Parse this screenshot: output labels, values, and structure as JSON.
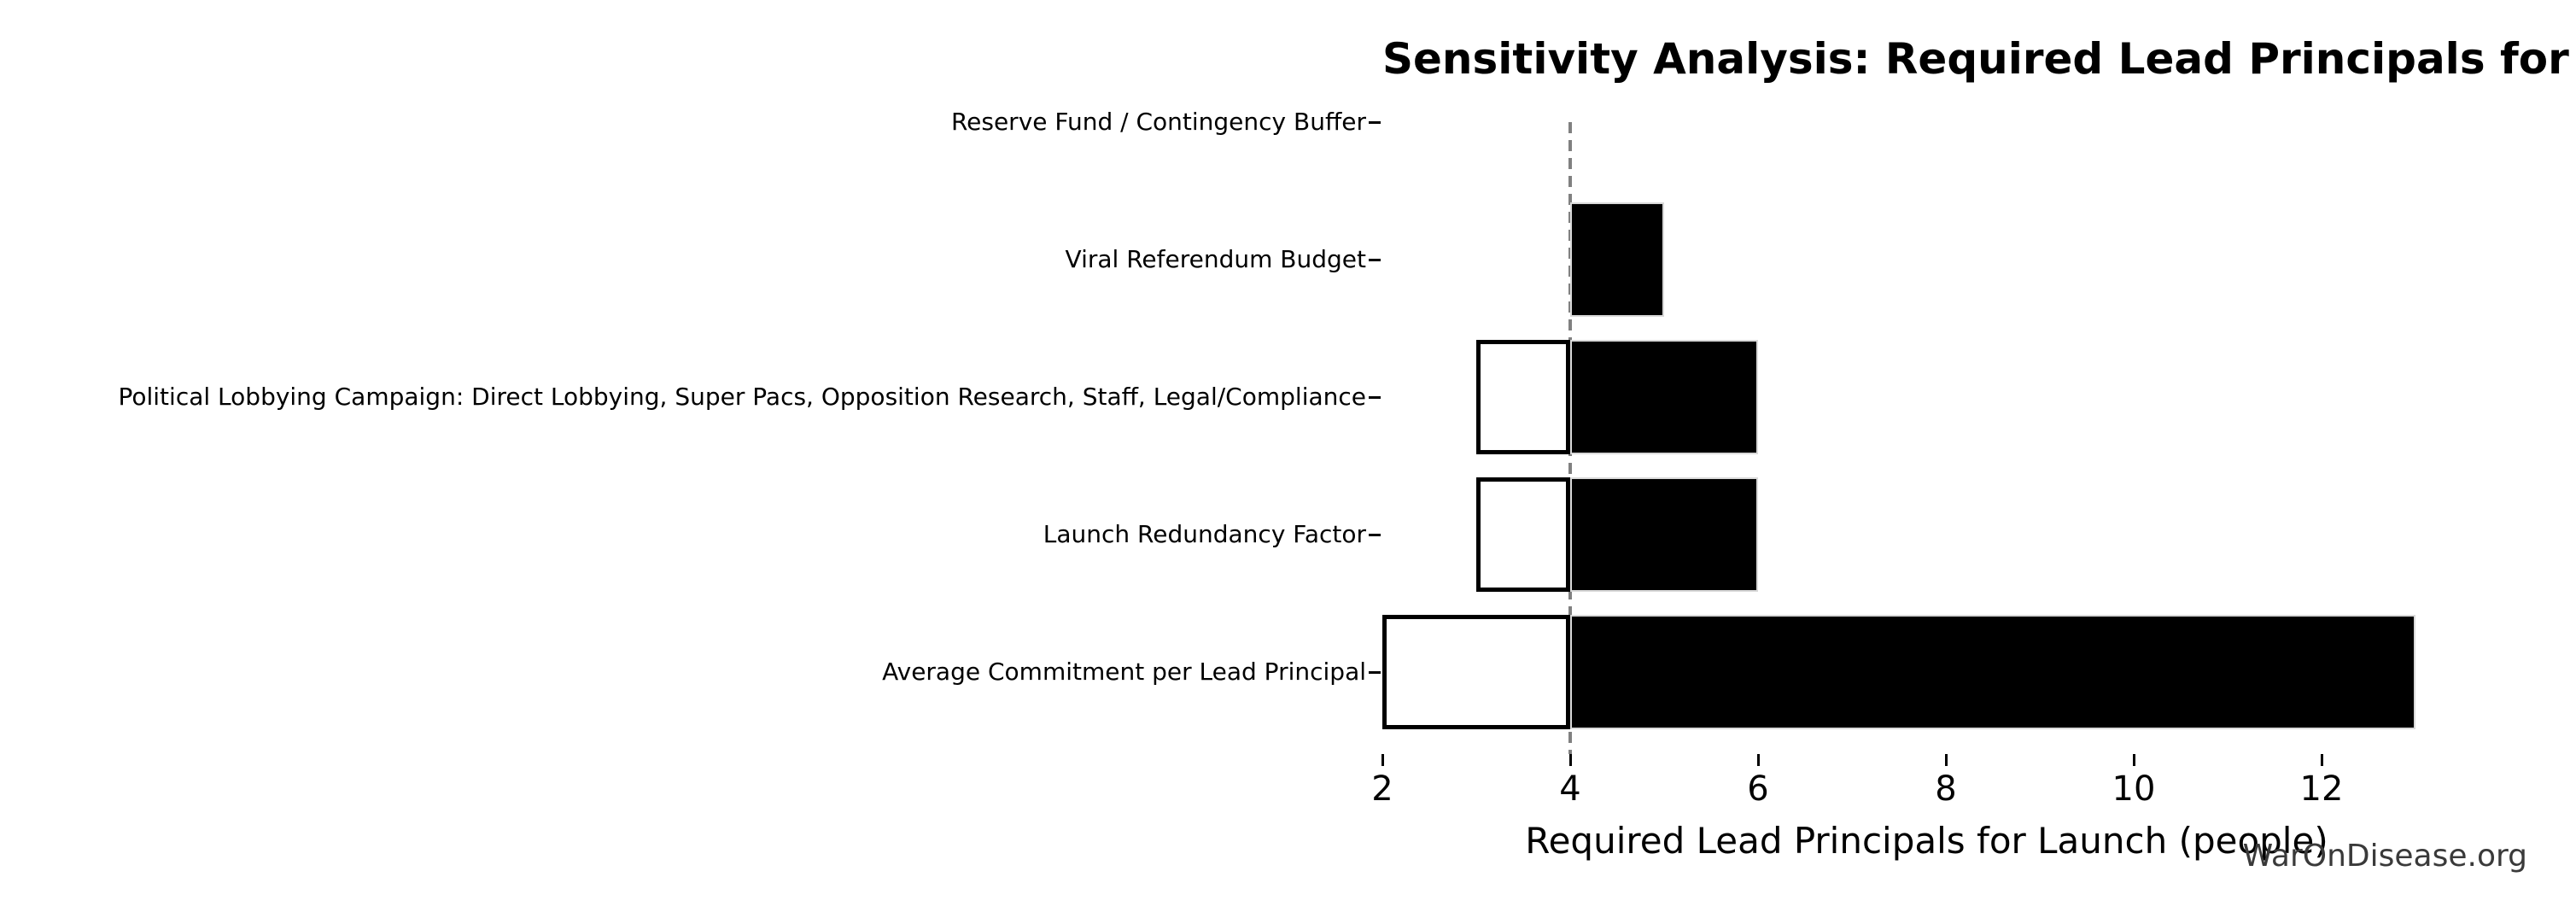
{
  "chart_data": {
    "type": "bar",
    "subtype": "tornado-sensitivity",
    "orientation": "horizontal",
    "title": "Sensitivity Analysis: Required Lead Principals for Launch",
    "xlabel": "Required Lead Principals for Launch (people)",
    "ylabel": "",
    "baseline": 4,
    "xticks": [
      2,
      4,
      6,
      8,
      10,
      12
    ],
    "xlim": [
      2,
      13.6
    ],
    "grid": false,
    "legend": "none",
    "categories_top_to_bottom": [
      "Reserve Fund / Contingency Buffer",
      "Viral Referendum Budget",
      "Political Lobbying Campaign: Direct Lobbying, Super Pacs, Opposition Research, Staff, Legal/Compliance",
      "Launch Redundancy Factor",
      "Average Commitment per Lead Principal"
    ],
    "rows": [
      {
        "label": "Reserve Fund / Contingency Buffer",
        "low": 4,
        "high": 4
      },
      {
        "label": "Viral Referendum Budget",
        "low": 4,
        "high": 5
      },
      {
        "label": "Political Lobbying Campaign: Direct Lobbying, Super Pacs, Opposition Research, Staff, Legal/Compliance",
        "low": 3,
        "high": 6
      },
      {
        "label": "Launch Redundancy Factor",
        "low": 3,
        "high": 6
      },
      {
        "label": "Average Commitment per Lead Principal",
        "low": 2,
        "high": 13
      }
    ],
    "series": [
      {
        "name": "low-value-bar",
        "fill": "#ffffff",
        "edge": "#000000",
        "values": [
          4,
          4,
          3,
          3,
          2
        ]
      },
      {
        "name": "high-value-bar",
        "fill": "#000000",
        "edge": "#d9d9d9",
        "values": [
          4,
          5,
          6,
          6,
          13
        ]
      }
    ]
  },
  "watermark": "WarOnDisease.org",
  "colors": {
    "background": "#ffffff",
    "text": "#000000",
    "spine": "#d9d9d9",
    "axis_line": "#d9d9d9",
    "tick": "#000000",
    "baseline_dash": "#808080",
    "bar_low_fill": "#ffffff",
    "bar_low_edge": "#000000",
    "bar_high_fill": "#000000",
    "bar_high_edge": "#d9d9d9",
    "watermark": "#3a3a3a"
  }
}
